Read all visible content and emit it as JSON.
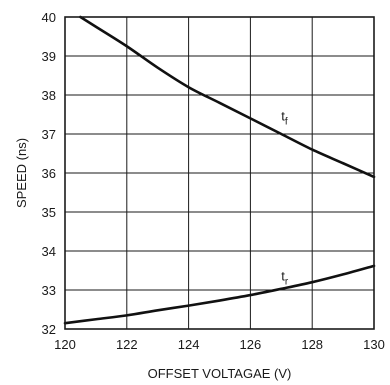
{
  "chart_data": {
    "type": "line",
    "xlabel": "OFFSET VOLTAGAE (V)",
    "ylabel": "SPEED (ns)",
    "xlim": [
      120,
      130
    ],
    "ylim": [
      32,
      40
    ],
    "xticks": [
      120,
      122,
      124,
      126,
      128,
      130
    ],
    "yticks": [
      32,
      33,
      34,
      35,
      36,
      37,
      38,
      39,
      40
    ],
    "grid": true,
    "series": [
      {
        "label_main": "t",
        "label_sub": "f",
        "x": [
          120.5,
          121,
          122,
          123,
          124,
          125,
          126,
          127,
          128,
          129,
          130
        ],
        "y": [
          40.0,
          39.75,
          39.25,
          38.7,
          38.2,
          37.8,
          37.4,
          37.0,
          36.6,
          36.25,
          35.9
        ]
      },
      {
        "label_main": "t",
        "label_sub": "r",
        "x": [
          120,
          121,
          122,
          123,
          124,
          125,
          126,
          127,
          128,
          129,
          130
        ],
        "y": [
          32.15,
          32.25,
          32.35,
          32.48,
          32.6,
          32.73,
          32.87,
          33.03,
          33.2,
          33.4,
          33.62
        ]
      }
    ]
  }
}
